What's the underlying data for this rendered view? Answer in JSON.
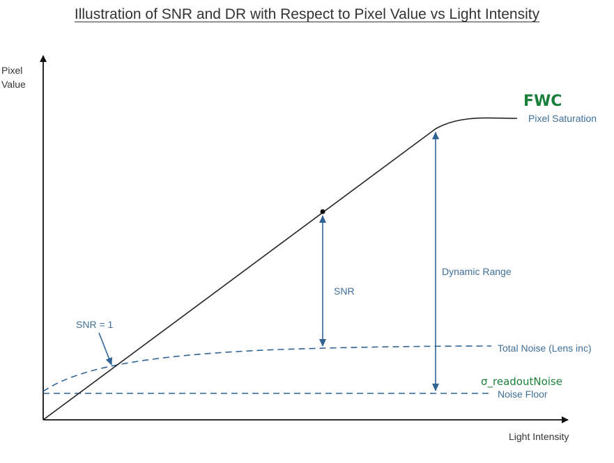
{
  "title": "Illustration of SNR and DR with Respect to Pixel Value vs Light Intensity",
  "y_axis_label_line1": "Pixel",
  "y_axis_label_line2": "Value",
  "x_axis_label": "Light Intensity",
  "labels": {
    "fwc": "FWC",
    "pixel_saturation": "Pixel Saturation",
    "dynamic_range": "Dynamic Range",
    "snr": "SNR",
    "snr_eq_1": "SNR = 1",
    "total_noise": "Total Noise (Lens inc)",
    "readout_noise": "σ_readoutNoise",
    "noise_floor": "Noise Floor"
  },
  "colors": {
    "blue": "#3e6f99",
    "green": "#1a7f3a",
    "line": "#222222"
  }
}
